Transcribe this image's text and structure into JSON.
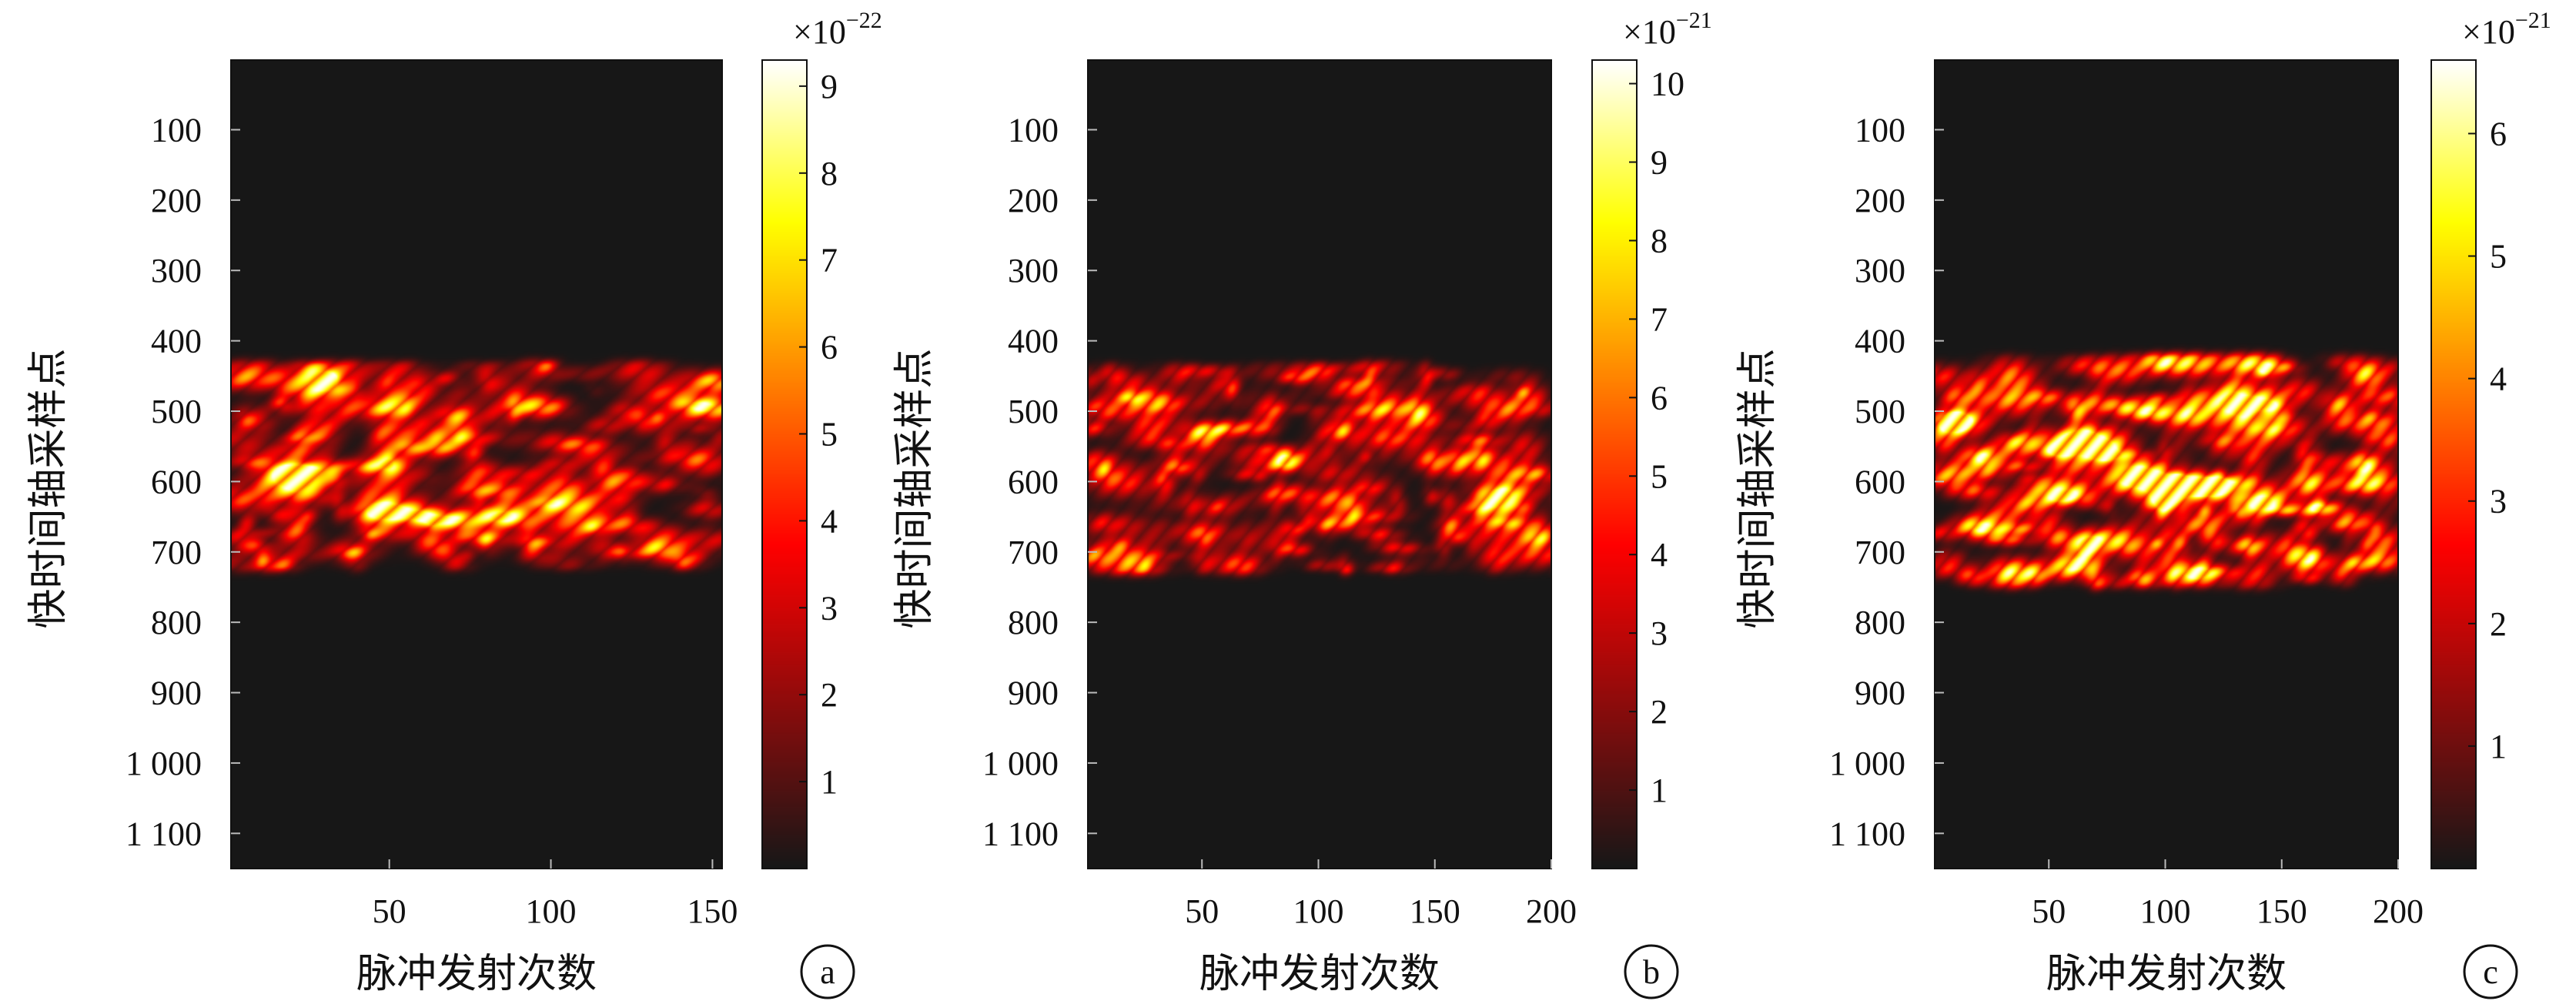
{
  "chart_data": [
    {
      "type": "heatmap",
      "panel_label": "a",
      "xlabel": "脉冲发射次数",
      "ylabel": "快时间轴采样点",
      "xlim": [
        1,
        153
      ],
      "ylim": [
        1,
        1150
      ],
      "x_ticks": [
        50,
        100,
        150
      ],
      "x_tick_labels": [
        "50",
        "100",
        "150"
      ],
      "y_ticks": [
        100,
        200,
        300,
        400,
        500,
        600,
        700,
        800,
        900,
        1000,
        1100
      ],
      "y_tick_labels": [
        "100",
        "200",
        "300",
        "400",
        "500",
        "600",
        "700",
        "800",
        "900",
        "1 000",
        "1 100"
      ],
      "colorbar": {
        "exponent_label": "×10",
        "exponent": "−22",
        "range": [
          0,
          9.3
        ],
        "ticks": [
          1,
          2,
          3,
          4,
          5,
          6,
          7,
          8,
          9
        ],
        "tick_labels": [
          "1",
          "2",
          "3",
          "4",
          "5",
          "6",
          "7",
          "8",
          "9"
        ]
      },
      "signal_band": [
        435,
        720
      ],
      "hotspots": [
        {
          "x": 68,
          "y": 655,
          "v": 9.2
        },
        {
          "x": 50,
          "y": 648,
          "v": 7.5
        },
        {
          "x": 85,
          "y": 650,
          "v": 6.8
        },
        {
          "x": 48,
          "y": 495,
          "v": 6.0
        },
        {
          "x": 96,
          "y": 497,
          "v": 5.2
        },
        {
          "x": 118,
          "y": 660,
          "v": 4.8
        },
        {
          "x": 150,
          "y": 495,
          "v": 6.5
        },
        {
          "x": 150,
          "y": 455,
          "v": 4.5
        }
      ],
      "seed": 11
    },
    {
      "type": "heatmap",
      "panel_label": "b",
      "xlabel": "脉冲发射次数",
      "ylabel": "快时间轴采样点",
      "xlim": [
        1,
        200
      ],
      "ylim": [
        1,
        1150
      ],
      "x_ticks": [
        50,
        100,
        150,
        200
      ],
      "x_tick_labels": [
        "50",
        "100",
        "150",
        "200"
      ],
      "y_ticks": [
        100,
        200,
        300,
        400,
        500,
        600,
        700,
        800,
        900,
        1000,
        1100
      ],
      "y_tick_labels": [
        "100",
        "200",
        "300",
        "400",
        "500",
        "600",
        "700",
        "800",
        "900",
        "1 000",
        "1 100"
      ],
      "colorbar": {
        "exponent_label": "×10",
        "exponent": "−21",
        "range": [
          0,
          10.3
        ],
        "ticks": [
          1,
          2,
          3,
          4,
          5,
          6,
          7,
          8,
          9,
          10
        ],
        "tick_labels": [
          "1",
          "2",
          "3",
          "4",
          "5",
          "6",
          "7",
          "8",
          "9",
          "10"
        ]
      },
      "signal_band": [
        435,
        725
      ],
      "hotspots": [
        {
          "x": 180,
          "y": 615,
          "v": 7.2
        },
        {
          "x": 85,
          "y": 570,
          "v": 5.5
        },
        {
          "x": 50,
          "y": 672,
          "v": 5.0
        },
        {
          "x": 140,
          "y": 500,
          "v": 4.2
        }
      ],
      "seed": 23
    },
    {
      "type": "heatmap",
      "panel_label": "c",
      "xlabel": "脉冲发射次数",
      "ylabel": "快时间轴采样点",
      "xlim": [
        1,
        200
      ],
      "ylim": [
        1,
        1150
      ],
      "x_ticks": [
        50,
        100,
        150,
        200
      ],
      "x_tick_labels": [
        "50",
        "100",
        "150",
        "200"
      ],
      "y_ticks": [
        100,
        200,
        300,
        400,
        500,
        600,
        700,
        800,
        900,
        1000,
        1100
      ],
      "y_tick_labels": [
        "100",
        "200",
        "300",
        "400",
        "500",
        "600",
        "700",
        "800",
        "900",
        "1 000",
        "1 100"
      ],
      "colorbar": {
        "exponent_label": "×10",
        "exponent": "−21",
        "range": [
          0,
          6.6
        ],
        "ticks": [
          1,
          2,
          3,
          4,
          5,
          6
        ],
        "tick_labels": [
          "1",
          "2",
          "3",
          "4",
          "5",
          "6"
        ]
      },
      "signal_band": [
        425,
        745
      ],
      "hotspots": [
        {
          "x": 93,
          "y": 500,
          "v": 6.5
        },
        {
          "x": 115,
          "y": 607,
          "v": 5.5
        },
        {
          "x": 50,
          "y": 610,
          "v": 4.8
        },
        {
          "x": 185,
          "y": 605,
          "v": 5.2
        },
        {
          "x": 60,
          "y": 720,
          "v": 4.6
        },
        {
          "x": 190,
          "y": 715,
          "v": 4.4
        }
      ],
      "seed": 37
    }
  ]
}
